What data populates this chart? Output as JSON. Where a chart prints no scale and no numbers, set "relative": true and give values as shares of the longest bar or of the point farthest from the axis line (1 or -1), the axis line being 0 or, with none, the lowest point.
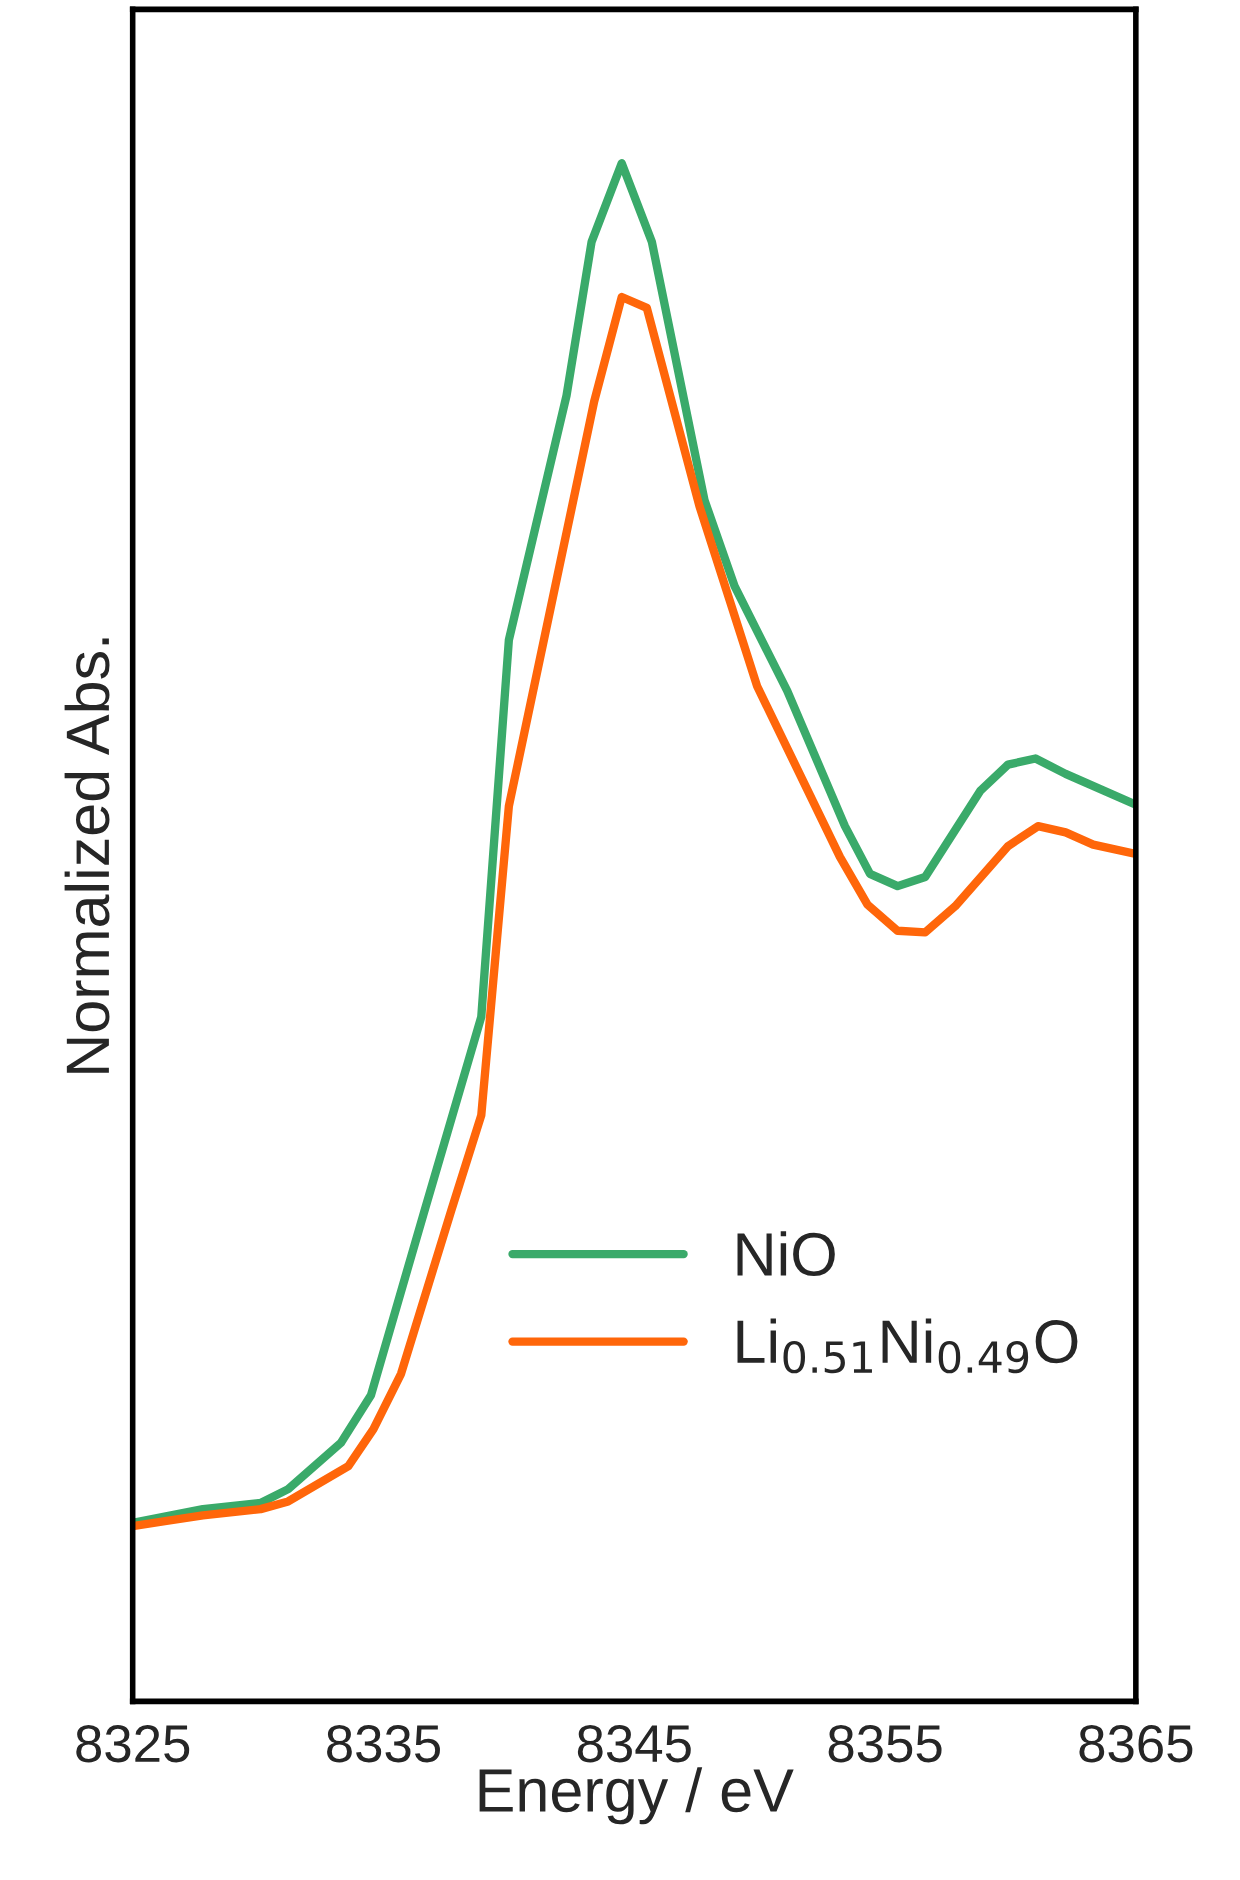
{
  "chart_data": {
    "type": "line",
    "relative": true,
    "xlabel": "Energy / eV",
    "ylabel": "Normalized Abs.",
    "xlim": [
      8325,
      8365
    ],
    "xticks": [
      8325,
      8335,
      8345,
      8355,
      8365
    ],
    "legend": "bottom right",
    "grid": false,
    "line_style": "solid",
    "series": [
      {
        "name": "NiO",
        "color": "#3aaa6a",
        "x": [
          8325.0,
          8327.8,
          8330.1,
          8331.2,
          8333.3,
          8334.5,
          8336.6,
          8338.9,
          8340.0,
          8342.3,
          8343.3,
          8344.5,
          8345.7,
          8347.8,
          8349.0,
          8351.1,
          8353.4,
          8354.4,
          8355.5,
          8356.6,
          8358.8,
          8359.9,
          8361.0,
          8362.2,
          8365.0
        ],
        "values": [
          0.116,
          0.125,
          0.129,
          0.138,
          0.168,
          0.199,
          0.317,
          0.445,
          0.69,
          0.849,
          0.949,
          1.0,
          0.949,
          0.781,
          0.725,
          0.657,
          0.569,
          0.538,
          0.53,
          0.536,
          0.592,
          0.609,
          0.613,
          0.603,
          0.583
        ]
      },
      {
        "name": "Li$_{0.51}$Ni$_{0.49}$O",
        "color": "#ff660a",
        "x": [
          8325.0,
          8327.8,
          8330.1,
          8331.2,
          8333.6,
          8334.6,
          8335.7,
          8337.7,
          8338.9,
          8340.0,
          8343.4,
          8344.5,
          8345.5,
          8347.6,
          8348.8,
          8349.9,
          8353.2,
          8354.3,
          8355.5,
          8356.6,
          8357.8,
          8359.9,
          8361.1,
          8362.2,
          8363.3,
          8365.0
        ],
        "values": [
          0.114,
          0.121,
          0.125,
          0.13,
          0.153,
          0.177,
          0.213,
          0.319,
          0.381,
          0.582,
          0.845,
          0.913,
          0.906,
          0.777,
          0.716,
          0.66,
          0.549,
          0.518,
          0.501,
          0.5,
          0.517,
          0.556,
          0.569,
          0.565,
          0.557,
          0.551
        ]
      }
    ]
  }
}
